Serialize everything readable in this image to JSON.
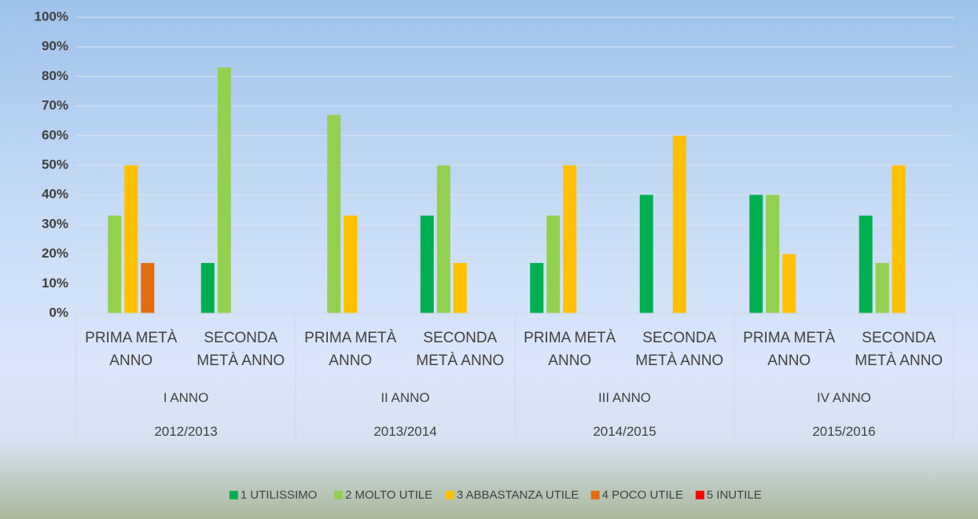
{
  "chart_data": {
    "type": "bar",
    "categories": [
      "PRIMA METÀ ANNO",
      "SECONDA METÀ ANNO",
      "PRIMA METÀ ANNO",
      "SECONDA METÀ ANNO",
      "PRIMA METÀ ANNO",
      "SECONDA METÀ ANNO",
      "PRIMA METÀ ANNO",
      "SECONDA METÀ ANNO"
    ],
    "groups": [
      {
        "label": "I ANNO",
        "year": "2012/2013"
      },
      {
        "label": "II ANNO",
        "year": "2013/2014"
      },
      {
        "label": "III ANNO",
        "year": "2014/2015"
      },
      {
        "label": "IV ANNO",
        "year": "2015/2016"
      }
    ],
    "series": [
      {
        "name": "1 UTILISSIMO",
        "color": "#00b050",
        "values": [
          0,
          17,
          0,
          33,
          17,
          40,
          40,
          33
        ]
      },
      {
        "name": "2 MOLTO UTILE",
        "color": "#92d050",
        "values": [
          33,
          83,
          67,
          50,
          33,
          0,
          40,
          17
        ]
      },
      {
        "name": "3 ABBASTANZA UTILE",
        "color": "#ffc000",
        "values": [
          50,
          0,
          33,
          17,
          50,
          60,
          20,
          50
        ]
      },
      {
        "name": "4 POCO UTILE",
        "color": "#e46c0a",
        "values": [
          17,
          0,
          0,
          0,
          0,
          0,
          0,
          0
        ]
      },
      {
        "name": "5 INUTILE",
        "color": "#ff0000",
        "values": [
          0,
          0,
          0,
          0,
          0,
          0,
          0,
          0
        ]
      }
    ],
    "ylim": [
      0,
      100
    ],
    "yticks": [
      {
        "value": 0,
        "label": "0%"
      },
      {
        "value": 10,
        "label": "10%"
      },
      {
        "value": 20,
        "label": "20%"
      },
      {
        "value": 30,
        "label": "30%"
      },
      {
        "value": 40,
        "label": "40%"
      },
      {
        "value": 50,
        "label": "50%"
      },
      {
        "value": 60,
        "label": "60%"
      },
      {
        "value": 70,
        "label": "70%"
      },
      {
        "value": 80,
        "label": "80%"
      },
      {
        "value": 90,
        "label": "90%"
      },
      {
        "value": 100,
        "label": "100%"
      }
    ],
    "grid": true,
    "legend": "bottom"
  }
}
